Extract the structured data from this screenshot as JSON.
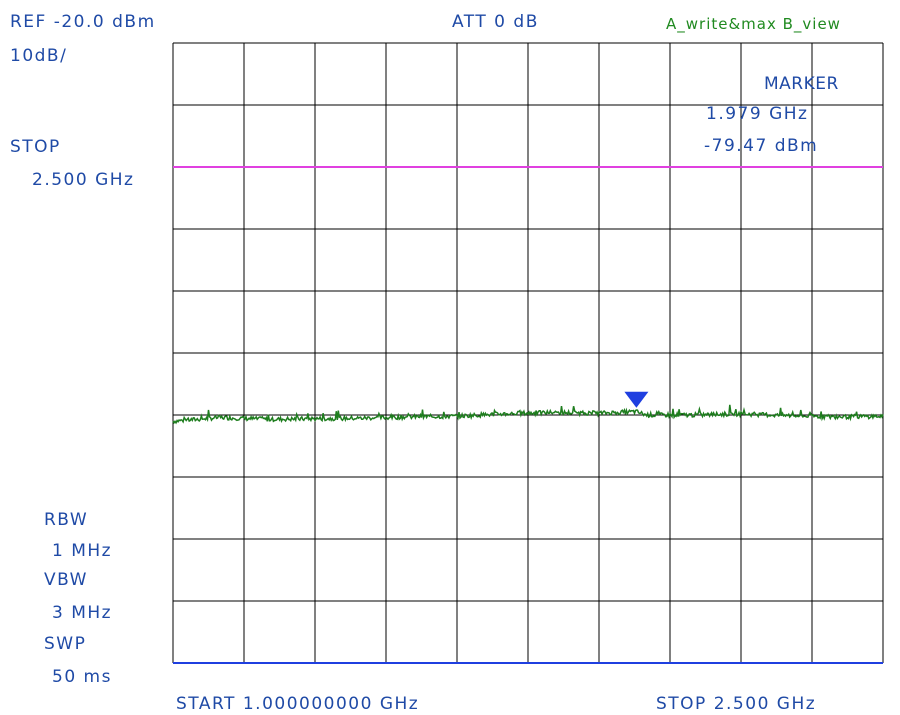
{
  "header": {
    "ref": "REF -20.0 dBm",
    "att": "ATT 0 dB",
    "trace_mode": "A_write&max B_view",
    "scale": "10dB/"
  },
  "left_panel": {
    "stop_label": "STOP",
    "stop_value": "2.500 GHz",
    "rbw_label": "RBW",
    "rbw_value": "1 MHz",
    "vbw_label": "VBW",
    "vbw_value": "3 MHz",
    "swp_label": "SWP",
    "swp_value": "50 ms"
  },
  "marker": {
    "label": "MARKER",
    "freq": "1.979 GHz",
    "level": "-79.47 dBm"
  },
  "footer": {
    "start": "START 1.000000000 GHz",
    "stop": "STOP 2.500 GHz"
  },
  "colors": {
    "text": "#1f4aa6",
    "trace": "#1e7d1e",
    "limit_line": "#e040e0",
    "marker": "#1f3fe0",
    "grid": "#000000"
  },
  "chart_data": {
    "type": "line",
    "x_unit": "GHz",
    "y_unit": "dBm",
    "xlim": [
      1.0,
      2.5
    ],
    "ylim": [
      -120,
      -20
    ],
    "grid": true,
    "divisions": {
      "x": 10,
      "y": 10
    },
    "limit_line_dbm": -40,
    "marker": {
      "x": 1.979,
      "y": -79.47
    },
    "trace_noise_floor_dbm": -80.5,
    "series": [
      {
        "x": [
          1.0,
          1.1,
          1.2,
          1.3,
          1.4,
          1.5,
          1.6,
          1.7,
          1.8,
          1.9,
          1.979,
          2.0,
          2.1,
          2.2,
          2.3,
          2.4,
          2.5
        ],
        "values": [
          -81.0,
          -80.4,
          -80.7,
          -80.6,
          -80.5,
          -80.3,
          -80.2,
          -79.8,
          -79.6,
          -79.7,
          -79.47,
          -80.0,
          -80.0,
          -79.8,
          -80.1,
          -80.3,
          -80.2
        ]
      }
    ]
  }
}
